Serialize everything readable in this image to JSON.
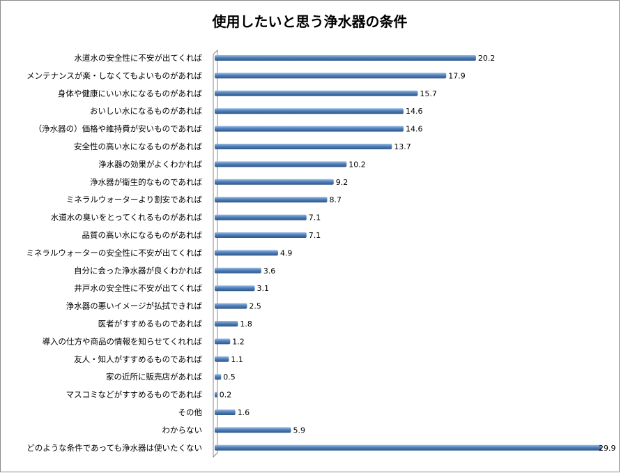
{
  "chart_data": {
    "type": "bar",
    "orientation": "horizontal",
    "title": "使用したいと思う浄水器の条件",
    "xlabel": "",
    "ylabel": "",
    "xlim": [
      0,
      30
    ],
    "grid": false,
    "bar_color": "#4F81BD",
    "categories": [
      "水道水の安全性に不安が出てくれば",
      "メンテナンスが楽・しなくてもよいものがあれば",
      "身体や健康にいい水になるものがあれば",
      "おいしい水になるものがあれば",
      "（浄水器の）価格や維持費が安いものであれば",
      "安全性の高い水になるものがあれば",
      "浄水器の効果がよくわかれば",
      "浄水器が衛生的なものであれば",
      "ミネラルウォーターより割安であれば",
      "水道水の臭いをとってくれるものがあれば",
      "品質の高い水になるものがあれば",
      "ミネラルウォーターの安全性に不安が出てくれば",
      "自分に会った浄水器が良くわかれば",
      "井戸水の安全性に不安が出てくれば",
      "浄水器の悪いイメージが払拭できれば",
      "医者がすすめるものであれば",
      "導入の仕方や商品の情報を知らせてくれれば",
      "友人・知人がすすめるものであれば",
      "家の近所に販売店があれば",
      "マスコミなどがすすめるものであれば",
      "その他",
      "わからない",
      "どのような条件であっても浄水器は使いたくない"
    ],
    "values": [
      20.2,
      17.9,
      15.7,
      14.6,
      14.6,
      13.7,
      10.2,
      9.2,
      8.7,
      7.1,
      7.1,
      4.9,
      3.6,
      3.1,
      2.5,
      1.8,
      1.2,
      1.1,
      0.5,
      0.2,
      1.6,
      5.9,
      29.9
    ],
    "value_labels": [
      "20.2",
      "17.9",
      "15.7",
      "14.6",
      "14.6",
      "13.7",
      "10.2",
      "9.2",
      "8.7",
      "7.1",
      "7.1",
      "4.9",
      "3.6",
      "3.1",
      "2.5",
      "1.8",
      "1.2",
      "1.1",
      "0.5",
      "0.2",
      "1.6",
      "5.9",
      "29.9"
    ]
  }
}
